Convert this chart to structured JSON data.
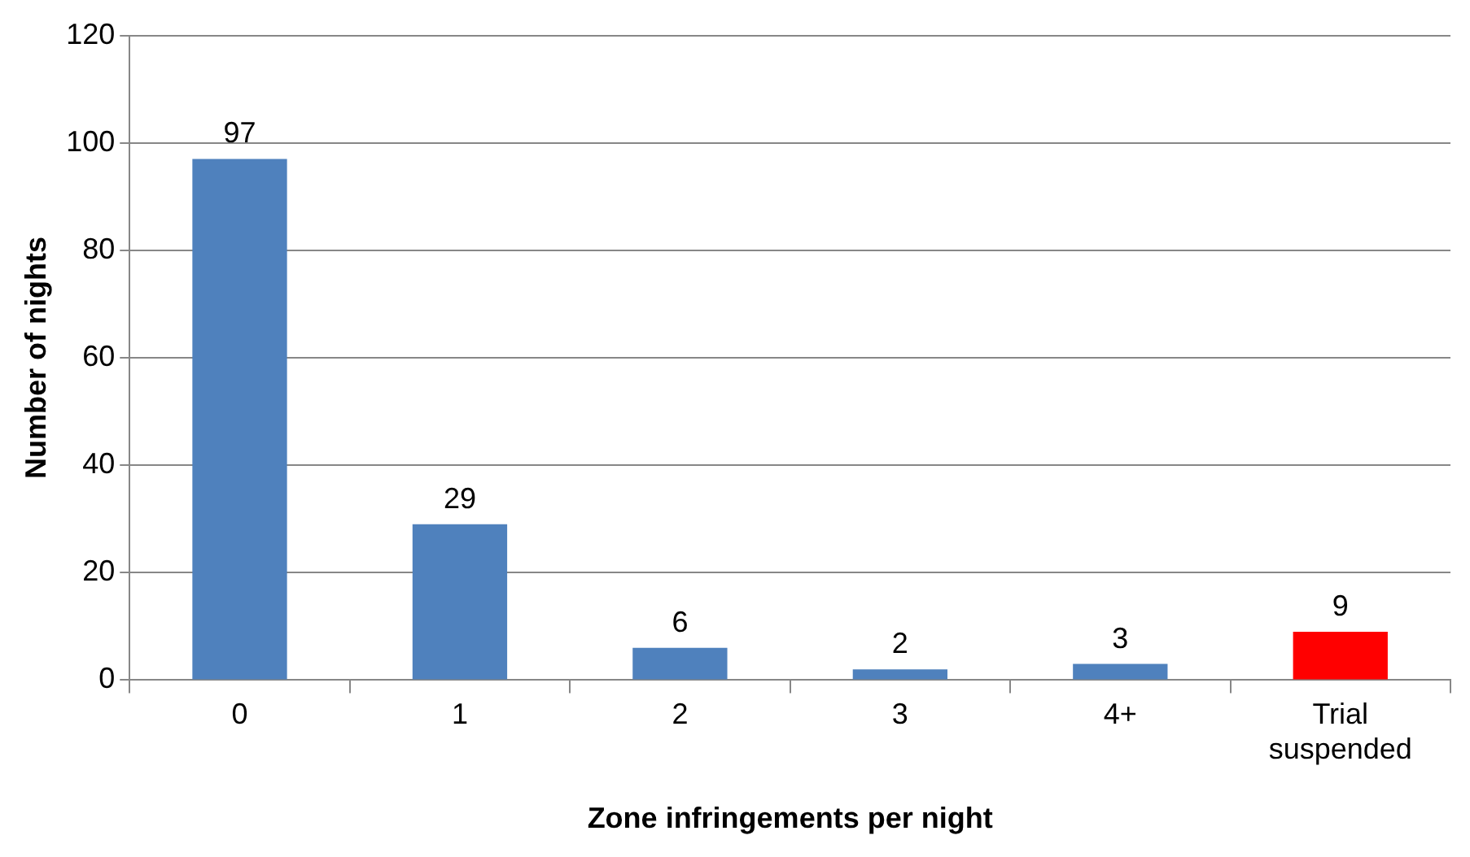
{
  "chart_data": {
    "type": "bar",
    "xlabel": "Zone infringements per night",
    "ylabel": "Number of nights",
    "categories": [
      "0",
      "1",
      "2",
      "3",
      "4+",
      "Trial suspended"
    ],
    "values": [
      97,
      29,
      6,
      2,
      3,
      9
    ],
    "colors": [
      "#4f81bd",
      "#4f81bd",
      "#4f81bd",
      "#4f81bd",
      "#4f81bd",
      "#ff0000"
    ],
    "ylim": [
      0,
      120
    ],
    "yticks": [
      0,
      20,
      40,
      60,
      80,
      100,
      120
    ],
    "grid": "y",
    "data_labels": true
  }
}
